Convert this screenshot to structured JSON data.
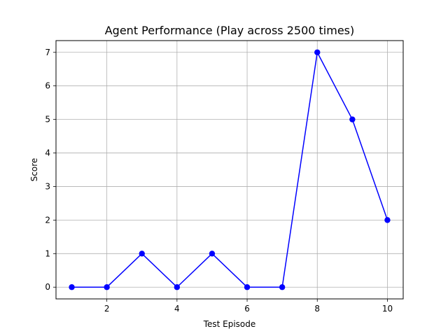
{
  "chart_data": {
    "type": "line",
    "title": "Agent Performance (Play across 2500 times)",
    "xlabel": "Test Episode",
    "ylabel": "Score",
    "x": [
      1,
      2,
      3,
      4,
      5,
      6,
      7,
      8,
      9,
      10
    ],
    "y": [
      0,
      0,
      1,
      0,
      1,
      0,
      0,
      7,
      5,
      2
    ],
    "xlim": [
      0.55,
      10.45
    ],
    "ylim": [
      -0.35,
      7.35
    ],
    "xticks": [
      2,
      4,
      6,
      8,
      10
    ],
    "yticks": [
      0,
      1,
      2,
      3,
      4,
      5,
      6,
      7
    ],
    "grid": true,
    "line_color": "#0000ff",
    "marker": "circle"
  }
}
